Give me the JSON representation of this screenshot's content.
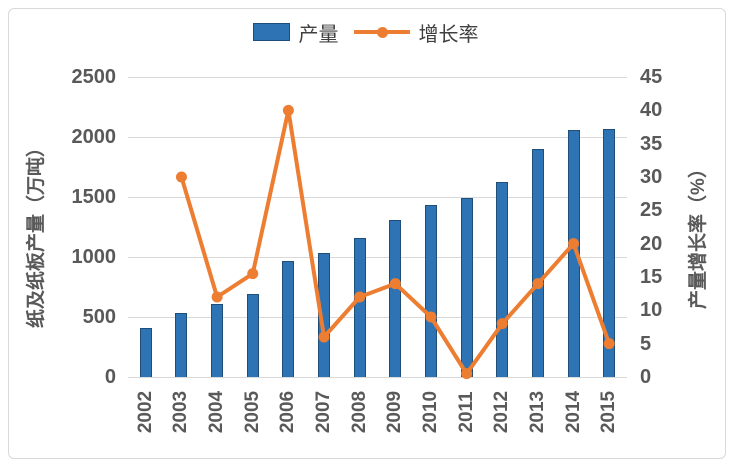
{
  "legend": {
    "items": [
      {
        "label": "产量",
        "marker": "bar"
      },
      {
        "label": "增长率",
        "marker": "line-dot"
      }
    ]
  },
  "colors": {
    "bar_fill": "#2e74b5",
    "bar_border": "#1f4e79",
    "line": "#ed7d31",
    "text": "#595959",
    "legend_text": "#404040",
    "grid": "#d9d9d9",
    "frame_border": "#d9d9d9",
    "background": "#ffffff"
  },
  "chart_data": {
    "type": "combo",
    "categories": [
      "2002",
      "2003",
      "2004",
      "2005",
      "2006",
      "2007",
      "2008",
      "2009",
      "2010",
      "2011",
      "2012",
      "2013",
      "2014",
      "2015"
    ],
    "series": [
      {
        "name": "产量",
        "type": "bar",
        "axis": "left",
        "values": [
          410,
          535,
          605,
          695,
          970,
          1030,
          1160,
          1310,
          1430,
          1495,
          1625,
          1900,
          2055,
          2065
        ]
      },
      {
        "name": "增长率",
        "type": "line",
        "axis": "right",
        "values": [
          null,
          30,
          12,
          15.5,
          40,
          6,
          12,
          14,
          9,
          0.5,
          8,
          14,
          20,
          5
        ]
      }
    ],
    "left_axis": {
      "title": "纸及纸板产量（万吨）",
      "min": 0,
      "max": 2500,
      "step": 500,
      "tick_labels": [
        "0",
        "500",
        "1000",
        "1500",
        "2000",
        "2500"
      ]
    },
    "right_axis": {
      "title": "产量增长率（%）",
      "min": 0,
      "max": 45,
      "step": 5,
      "tick_labels": [
        "0",
        "5",
        "10",
        "15",
        "20",
        "25",
        "30",
        "35",
        "40",
        "45"
      ]
    },
    "legend_position": "top",
    "grid": true
  }
}
